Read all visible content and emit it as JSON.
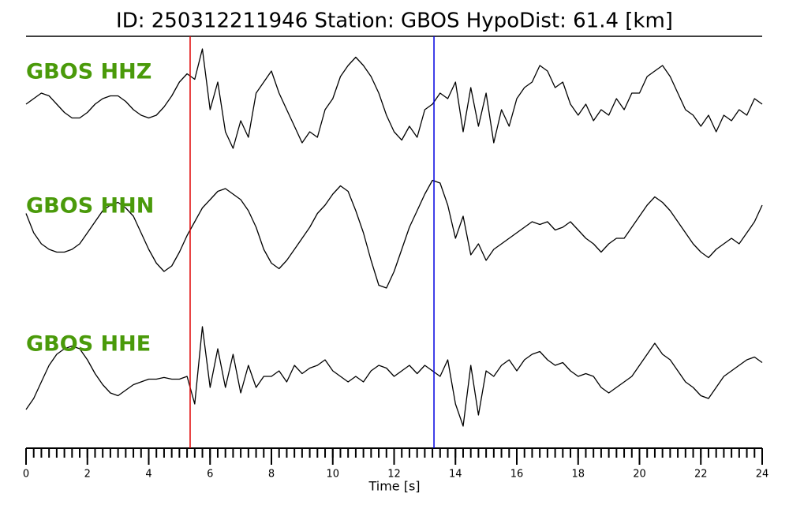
{
  "chart_data": {
    "type": "line",
    "title": "ID: 250312211946   Station: GBOS   HypoDist:    61.4 [km]",
    "xlabel": "Time [s]",
    "xlim": [
      0,
      24
    ],
    "xticks": [
      0,
      2,
      4,
      6,
      8,
      10,
      12,
      14,
      16,
      18,
      20,
      22,
      24
    ],
    "xminorticks": [
      0,
      0.25,
      0.5,
      0.75,
      1,
      1.25,
      1.5,
      1.75,
      2,
      2.25,
      2.5,
      2.75,
      3,
      3.25,
      3.5,
      3.75,
      4,
      4.25,
      4.5,
      4.75,
      5,
      5.25,
      5.5,
      5.75,
      6,
      6.25,
      6.5,
      6.75,
      7,
      7.25,
      7.5,
      7.75,
      8,
      8.25,
      8.5,
      8.75,
      9,
      9.25,
      9.5,
      9.75,
      10,
      10.25,
      10.5,
      10.75,
      11,
      11.25,
      11.5,
      11.75,
      12,
      12.25,
      12.5,
      12.75,
      13,
      13.25,
      13.5,
      13.75,
      14,
      14.25,
      14.5,
      14.75,
      15,
      15.25,
      15.5,
      15.75,
      16,
      16.25,
      16.5,
      16.75,
      17,
      17.25,
      17.5,
      17.75,
      18,
      18.25,
      18.5,
      18.75,
      19,
      19.25,
      19.5,
      19.75,
      20,
      20.25,
      20.5,
      20.75,
      21,
      21.25,
      21.5,
      21.75,
      22,
      22.25,
      22.5,
      22.75,
      23,
      23.25,
      23.5,
      23.75,
      24
    ],
    "ylim": [
      -1,
      1
    ],
    "label_color": "#4a9a0a",
    "picks": [
      {
        "x": 5.35,
        "color": "#e00000"
      },
      {
        "x": 13.3,
        "color": "#0000e0"
      }
    ],
    "x": [
      0,
      0.25,
      0.5,
      0.75,
      1,
      1.25,
      1.5,
      1.75,
      2,
      2.25,
      2.5,
      2.75,
      3,
      3.25,
      3.5,
      3.75,
      4,
      4.25,
      4.5,
      4.75,
      5,
      5.25,
      5.5,
      5.75,
      6,
      6.25,
      6.5,
      6.75,
      7,
      7.25,
      7.5,
      7.75,
      8,
      8.25,
      8.5,
      8.75,
      9,
      9.25,
      9.5,
      9.75,
      10,
      10.25,
      10.5,
      10.75,
      11,
      11.25,
      11.5,
      11.75,
      12,
      12.25,
      12.5,
      12.75,
      13,
      13.25,
      13.5,
      13.75,
      14,
      14.25,
      14.5,
      14.75,
      15,
      15.25,
      15.5,
      15.75,
      16,
      16.25,
      16.5,
      16.75,
      17,
      17.25,
      17.5,
      17.75,
      18,
      18.25,
      18.5,
      18.75,
      19,
      19.25,
      19.5,
      19.75,
      20,
      20.25,
      20.5,
      20.75,
      21,
      21.25,
      21.5,
      21.75,
      22,
      22.25,
      22.5,
      22.75,
      23,
      23.25,
      23.5,
      23.75,
      24
    ],
    "series": [
      {
        "name": "GBOS HHZ",
        "color": "#000000",
        "values": [
          -0.1,
          0.0,
          0.1,
          0.05,
          -0.1,
          -0.25,
          -0.35,
          -0.35,
          -0.25,
          -0.1,
          0.0,
          0.05,
          0.05,
          -0.05,
          -0.2,
          -0.3,
          -0.35,
          -0.3,
          -0.15,
          0.05,
          0.3,
          0.45,
          0.35,
          0.9,
          -0.2,
          0.3,
          -0.6,
          -0.9,
          -0.4,
          -0.7,
          0.1,
          0.3,
          0.5,
          0.1,
          -0.2,
          -0.5,
          -0.8,
          -0.6,
          -0.7,
          -0.2,
          0.0,
          0.4,
          0.6,
          0.75,
          0.6,
          0.4,
          0.1,
          -0.3,
          -0.6,
          -0.75,
          -0.5,
          -0.7,
          -0.2,
          -0.1,
          0.1,
          0.0,
          0.3,
          -0.6,
          0.2,
          -0.5,
          0.1,
          -0.8,
          -0.2,
          -0.5,
          0.0,
          0.2,
          0.3,
          0.6,
          0.5,
          0.2,
          0.3,
          -0.1,
          -0.3,
          -0.1,
          -0.4,
          -0.2,
          -0.3,
          0.0,
          -0.2,
          0.1,
          0.1,
          0.4,
          0.5,
          0.6,
          0.4,
          0.1,
          -0.2,
          -0.3,
          -0.5,
          -0.3,
          -0.6,
          -0.3,
          -0.4,
          -0.2,
          -0.3,
          0.0,
          -0.1
        ]
      },
      {
        "name": "GBOS HHN",
        "color": "#000000",
        "values": [
          0.35,
          0.0,
          -0.2,
          -0.3,
          -0.35,
          -0.35,
          -0.3,
          -0.2,
          0.0,
          0.2,
          0.4,
          0.5,
          0.55,
          0.45,
          0.3,
          0.0,
          -0.3,
          -0.55,
          -0.7,
          -0.6,
          -0.35,
          -0.05,
          0.2,
          0.45,
          0.6,
          0.75,
          0.8,
          0.7,
          0.6,
          0.4,
          0.1,
          -0.3,
          -0.55,
          -0.65,
          -0.5,
          -0.3,
          -0.1,
          0.1,
          0.35,
          0.5,
          0.7,
          0.85,
          0.75,
          0.4,
          0.0,
          -0.5,
          -0.95,
          -1.0,
          -0.7,
          -0.3,
          0.1,
          0.4,
          0.7,
          0.95,
          0.9,
          0.5,
          -0.1,
          0.3,
          -0.4,
          -0.2,
          -0.5,
          -0.3,
          -0.2,
          -0.1,
          0.0,
          0.1,
          0.2,
          0.15,
          0.2,
          0.05,
          0.1,
          0.2,
          0.05,
          -0.1,
          -0.2,
          -0.35,
          -0.2,
          -0.1,
          -0.1,
          0.1,
          0.3,
          0.5,
          0.65,
          0.55,
          0.4,
          0.2,
          0.0,
          -0.2,
          -0.35,
          -0.45,
          -0.3,
          -0.2,
          -0.1,
          -0.2,
          0.0,
          0.2,
          0.5
        ]
      },
      {
        "name": "GBOS HHE",
        "color": "#000000",
        "values": [
          -0.7,
          -0.5,
          -0.2,
          0.1,
          0.3,
          0.4,
          0.45,
          0.4,
          0.2,
          -0.05,
          -0.25,
          -0.4,
          -0.45,
          -0.35,
          -0.25,
          -0.2,
          -0.15,
          -0.15,
          -0.12,
          -0.15,
          -0.15,
          -0.1,
          -0.6,
          0.8,
          -0.3,
          0.4,
          -0.3,
          0.3,
          -0.4,
          0.1,
          -0.3,
          -0.1,
          -0.1,
          0.0,
          -0.2,
          0.1,
          -0.05,
          0.05,
          0.1,
          0.2,
          0.0,
          -0.1,
          -0.2,
          -0.1,
          -0.2,
          0.0,
          0.1,
          0.05,
          -0.1,
          0.0,
          0.1,
          -0.05,
          0.1,
          0.0,
          -0.1,
          0.2,
          -0.6,
          -1.0,
          0.1,
          -0.8,
          0.0,
          -0.1,
          0.1,
          0.2,
          0.0,
          0.2,
          0.3,
          0.35,
          0.2,
          0.1,
          0.15,
          0.0,
          -0.1,
          -0.05,
          -0.1,
          -0.3,
          -0.4,
          -0.3,
          -0.2,
          -0.1,
          0.1,
          0.3,
          0.5,
          0.3,
          0.2,
          0.0,
          -0.2,
          -0.3,
          -0.45,
          -0.5,
          -0.3,
          -0.1,
          0.0,
          0.1,
          0.2,
          0.25,
          0.15
        ]
      }
    ]
  }
}
